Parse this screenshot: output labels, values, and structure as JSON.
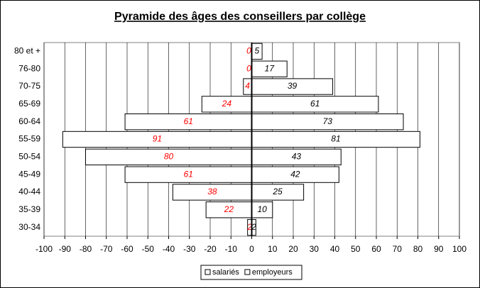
{
  "chart_data": {
    "type": "pyramid",
    "title": "Pyramide des âges des conseillers par collège",
    "categories": [
      "80 et +",
      "76-80",
      "70-75",
      "65-69",
      "60-64",
      "55-59",
      "50-54",
      "45-49",
      "40-44",
      "35-39",
      "30-34"
    ],
    "series": [
      {
        "name": "salariés",
        "color": "#ffffff",
        "label_color": "#ff0000",
        "values": [
          0,
          0,
          -4,
          -24,
          -61,
          -91,
          -80,
          -61,
          -38,
          -22,
          -2
        ],
        "value_labels": [
          "0",
          "0",
          "4",
          "24",
          "61",
          "91",
          "80",
          "61",
          "38",
          "22",
          "2"
        ]
      },
      {
        "name": "employeurs",
        "color": "#ffffff",
        "label_color": "#000000",
        "values": [
          5,
          17,
          39,
          61,
          73,
          81,
          43,
          42,
          25,
          10,
          2
        ]
      }
    ],
    "xlim": [
      -100,
      100
    ],
    "xticks": [
      -100,
      -90,
      -80,
      -70,
      -60,
      -50,
      -40,
      -30,
      -20,
      -10,
      0,
      10,
      20,
      30,
      40,
      50,
      60,
      70,
      80,
      90,
      100
    ],
    "grid": true,
    "legend": "bottom"
  }
}
